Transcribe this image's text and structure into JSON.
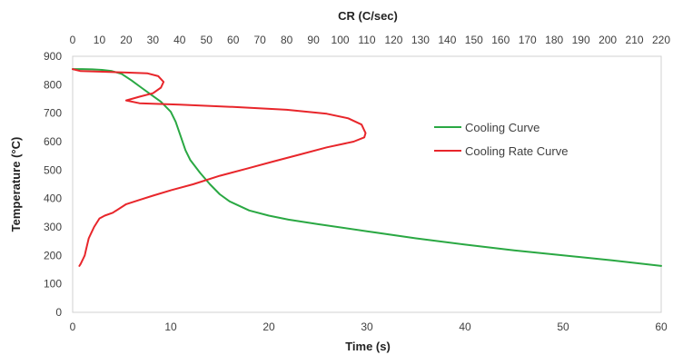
{
  "chart_data": {
    "type": "line",
    "x_label": "Time (s)",
    "x2_label": "CR (C/sec)",
    "y_label": "Temperature (°C)",
    "x_range": [
      0,
      60
    ],
    "x2_range": [
      0,
      220
    ],
    "y_range": [
      0,
      900
    ],
    "x_ticks": [
      "0",
      "10",
      "20",
      "30",
      "40",
      "50",
      "60"
    ],
    "x2_ticks": [
      "0",
      "10",
      "20",
      "30",
      "40",
      "50",
      "60",
      "70",
      "80",
      "90",
      "100",
      "110",
      "120",
      "130",
      "140",
      "150",
      "160",
      "170",
      "180",
      "190",
      "200",
      "210",
      "220"
    ],
    "y_ticks": [
      "0",
      "100",
      "200",
      "300",
      "400",
      "500",
      "600",
      "700",
      "800",
      "900"
    ],
    "grid": false,
    "legend_position": "right",
    "series": [
      {
        "name": "Cooling Curve",
        "axis": "time",
        "color": "#2aa843",
        "x": [
          0,
          1,
          2,
          3,
          4,
          5,
          6,
          7,
          8,
          9,
          10,
          10.5,
          11,
          11.5,
          12,
          13,
          14,
          15,
          16,
          18,
          20,
          22,
          25,
          30,
          35,
          40,
          45,
          50,
          55,
          60
        ],
        "y": [
          855,
          855,
          854,
          852,
          848,
          838,
          815,
          790,
          765,
          740,
          705,
          670,
          620,
          570,
          535,
          490,
          450,
          415,
          390,
          358,
          340,
          326,
          310,
          285,
          260,
          238,
          218,
          200,
          183,
          163
        ]
      },
      {
        "name": "Cooling Rate Curve",
        "axis": "cr",
        "color": "#e8262b",
        "x": [
          0,
          3,
          10,
          20,
          28,
          32,
          34,
          33,
          30,
          25,
          22,
          20,
          25,
          40,
          60,
          80,
          95,
          103,
          108,
          109.5,
          109,
          105,
          95,
          85,
          75,
          65,
          55,
          45,
          37,
          30,
          25,
          20,
          15,
          12,
          10,
          8,
          7,
          6,
          5.5,
          5,
          4.5,
          4,
          3.5,
          3,
          2.5
        ],
        "y": [
          855,
          848,
          846,
          843,
          840,
          830,
          810,
          790,
          770,
          758,
          750,
          745,
          735,
          730,
          722,
          712,
          698,
          682,
          660,
          630,
          615,
          600,
          580,
          555,
          530,
          505,
          480,
          450,
          430,
          410,
          395,
          380,
          350,
          340,
          330,
          300,
          280,
          260,
          240,
          220,
          200,
          190,
          180,
          170,
          163
        ]
      }
    ]
  }
}
